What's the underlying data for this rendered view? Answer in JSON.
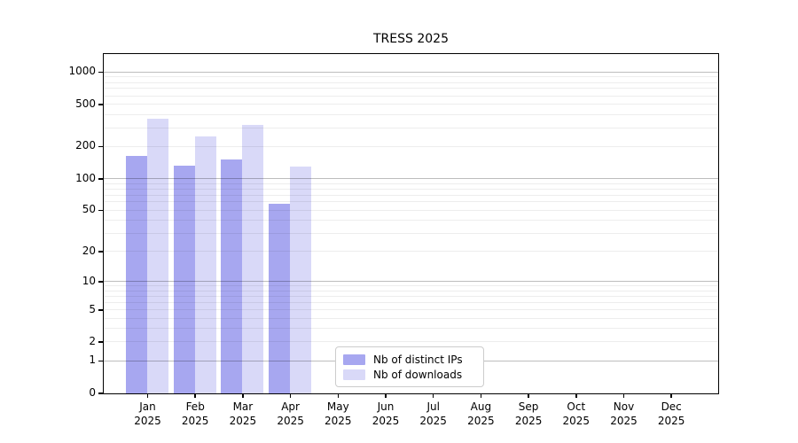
{
  "title": "TRESS 2025",
  "chart_data": {
    "type": "bar",
    "title": "TRESS 2025",
    "categories": [
      "Jan",
      "Feb",
      "Mar",
      "Apr",
      "May",
      "Jun",
      "Jul",
      "Aug",
      "Sep",
      "Oct",
      "Nov",
      "Dec"
    ],
    "category_year": "2025",
    "series": [
      {
        "name": "Nb of distinct IPs",
        "color": "#a7a7f0",
        "values": [
          165,
          133,
          152,
          58,
          null,
          null,
          null,
          null,
          null,
          null,
          null,
          null
        ]
      },
      {
        "name": "Nb of downloads",
        "color": "#d9d9f8",
        "values": [
          370,
          250,
          320,
          130,
          null,
          null,
          null,
          null,
          null,
          null,
          null,
          null
        ]
      }
    ],
    "yscale": "log1p",
    "yticks": [
      0,
      1,
      2,
      5,
      10,
      20,
      50,
      100,
      200,
      500,
      1000
    ],
    "major_gridlines": [
      1,
      10,
      100,
      1000
    ],
    "ylim": [
      0,
      1460
    ],
    "grid": true,
    "legend_position": "lower center",
    "xlabel": "",
    "ylabel": ""
  }
}
